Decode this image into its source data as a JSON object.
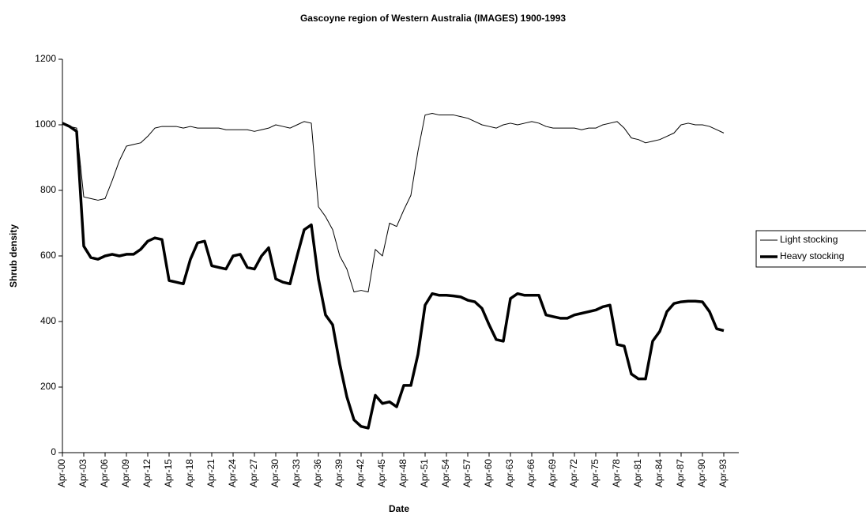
{
  "chart_data": {
    "type": "line",
    "title": "Gascoyne region of Western Australia (IMAGES) 1900-1993",
    "x_label": "Date",
    "y_label": "Shrub density",
    "categories": [
      "Apr-00",
      null,
      null,
      "Apr-03",
      null,
      null,
      "Apr-06",
      null,
      null,
      "Apr-09",
      null,
      null,
      "Apr-12",
      null,
      null,
      "Apr-15",
      null,
      null,
      "Apr-18",
      null,
      null,
      "Apr-21",
      null,
      null,
      "Apr-24",
      null,
      null,
      "Apr-27",
      null,
      null,
      "Apr-30",
      null,
      null,
      "Apr-33",
      null,
      null,
      "Apr-36",
      null,
      null,
      "Apr-39",
      null,
      null,
      "Apr-42",
      null,
      null,
      "Apr-45",
      null,
      null,
      "Apr-48",
      null,
      null,
      "Apr-51",
      null,
      null,
      "Apr-54",
      null,
      null,
      "Apr-57",
      null,
      null,
      "Apr-60",
      null,
      null,
      "Apr-63",
      null,
      null,
      "Apr-66",
      null,
      null,
      "Apr-69",
      null,
      null,
      "Apr-72",
      null,
      null,
      "Apr-75",
      null,
      null,
      "Apr-78",
      null,
      null,
      "Apr-81",
      null,
      null,
      "Apr-84",
      null,
      null,
      "Apr-87",
      null,
      null,
      "Apr-90",
      null,
      null,
      "Apr-93"
    ],
    "series": [
      {
        "name": "Light stocking",
        "color": "#000000",
        "width": 1,
        "values": [
          1005,
          995,
          990,
          780,
          775,
          770,
          775,
          830,
          890,
          935,
          940,
          945,
          965,
          990,
          995,
          995,
          995,
          990,
          995,
          990,
          990,
          990,
          990,
          985,
          985,
          985,
          985,
          980,
          985,
          990,
          1000,
          995,
          990,
          1000,
          1010,
          1005,
          750,
          720,
          680,
          600,
          560,
          490,
          495,
          490,
          620,
          600,
          700,
          690,
          740,
          785,
          920,
          1030,
          1035,
          1030,
          1030,
          1030,
          1025,
          1020,
          1010,
          1000,
          995,
          990,
          1000,
          1005,
          1000,
          1005,
          1010,
          1005,
          995,
          990,
          990,
          990,
          990,
          985,
          990,
          990,
          1000,
          1005,
          1010,
          990,
          960,
          955,
          945,
          950,
          955,
          965,
          975,
          1000,
          1005,
          1000,
          1000,
          995,
          985,
          975
        ]
      },
      {
        "name": "Heavy stocking",
        "color": "#000000",
        "width": 3.5,
        "values": [
          1005,
          995,
          980,
          630,
          595,
          590,
          600,
          605,
          600,
          605,
          605,
          620,
          645,
          655,
          650,
          525,
          520,
          515,
          590,
          640,
          645,
          570,
          565,
          560,
          600,
          605,
          565,
          560,
          600,
          625,
          530,
          520,
          515,
          600,
          680,
          695,
          530,
          420,
          390,
          270,
          170,
          100,
          80,
          75,
          175,
          150,
          155,
          140,
          205,
          205,
          300,
          450,
          485,
          480,
          480,
          478,
          475,
          465,
          460,
          440,
          390,
          345,
          340,
          470,
          485,
          480,
          480,
          480,
          420,
          415,
          410,
          410,
          420,
          425,
          430,
          435,
          445,
          450,
          330,
          325,
          240,
          225,
          225,
          340,
          370,
          430,
          455,
          460,
          462,
          462,
          460,
          430,
          378,
          372
        ]
      }
    ],
    "ylim": [
      0,
      1200
    ],
    "yticks": [
      0,
      200,
      400,
      600,
      800,
      1000,
      1200
    ],
    "legend": "right"
  }
}
